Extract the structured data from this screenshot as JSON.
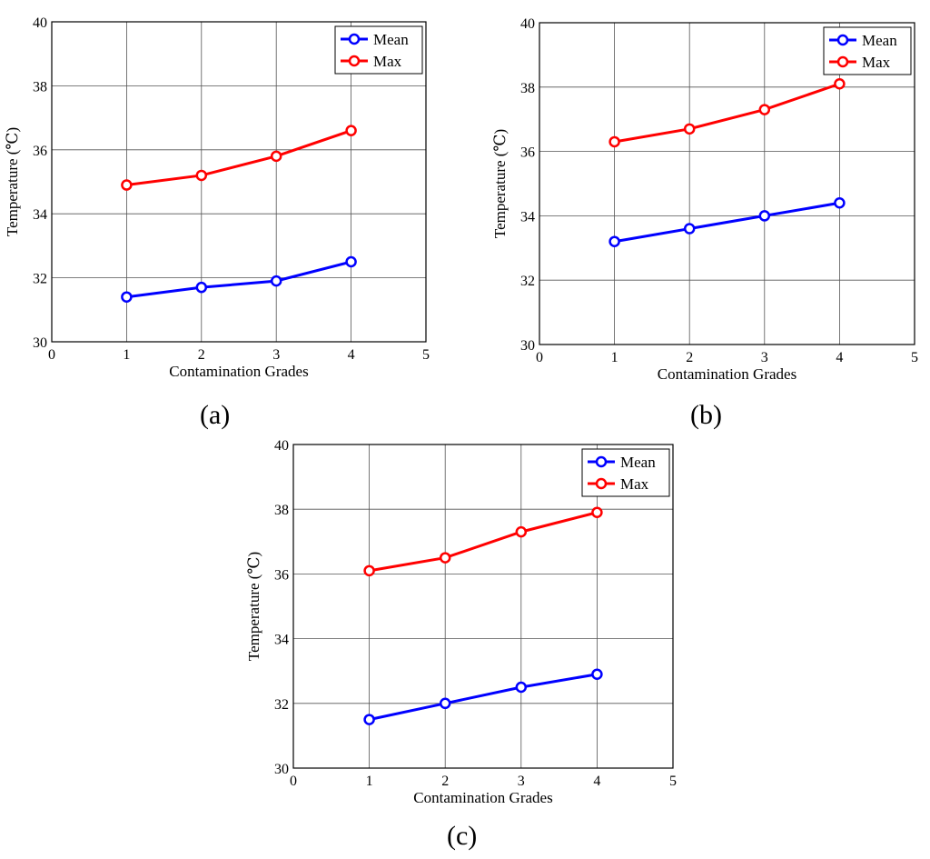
{
  "figure_captions": [
    "(a)",
    "(b)",
    "(c)"
  ],
  "legend_labels": [
    "Mean",
    "Max"
  ],
  "colors": {
    "mean": "#0000ff",
    "max": "#ff0000",
    "grid": "#000000"
  },
  "chart_data": [
    {
      "id": "a",
      "type": "line",
      "caption": "(a)",
      "xlabel": "Contamination Grades",
      "ylabel": "Temperature (℃)",
      "xlim": [
        0,
        5
      ],
      "ylim": [
        30,
        40
      ],
      "xticks": [
        0,
        1,
        2,
        3,
        4,
        5
      ],
      "yticks": [
        30,
        32,
        34,
        36,
        38,
        40
      ],
      "grid": true,
      "legend_position": "top-right",
      "x": [
        1,
        2,
        3,
        4
      ],
      "series": [
        {
          "name": "Mean",
          "color": "#0000ff",
          "values": [
            31.4,
            31.7,
            31.9,
            32.5
          ]
        },
        {
          "name": "Max",
          "color": "#ff0000",
          "values": [
            34.9,
            35.2,
            35.8,
            36.6
          ]
        }
      ]
    },
    {
      "id": "b",
      "type": "line",
      "caption": "(b)",
      "xlabel": "Contamination Grades",
      "ylabel": "Temperature (℃)",
      "xlim": [
        0,
        5
      ],
      "ylim": [
        30,
        40
      ],
      "xticks": [
        0,
        1,
        2,
        3,
        4,
        5
      ],
      "yticks": [
        30,
        32,
        34,
        36,
        38,
        40
      ],
      "grid": true,
      "legend_position": "top-right",
      "x": [
        1,
        2,
        3,
        4
      ],
      "series": [
        {
          "name": "Mean",
          "color": "#0000ff",
          "values": [
            33.2,
            33.6,
            34.0,
            34.4
          ]
        },
        {
          "name": "Max",
          "color": "#ff0000",
          "values": [
            36.3,
            36.7,
            37.3,
            38.1
          ]
        }
      ]
    },
    {
      "id": "c",
      "type": "line",
      "caption": "(c)",
      "xlabel": "Contamination Grades",
      "ylabel": "Temperature (℃)",
      "xlim": [
        0,
        5
      ],
      "ylim": [
        30,
        40
      ],
      "xticks": [
        0,
        1,
        2,
        3,
        4,
        5
      ],
      "yticks": [
        30,
        32,
        34,
        36,
        38,
        40
      ],
      "grid": true,
      "legend_position": "top-right",
      "x": [
        1,
        2,
        3,
        4
      ],
      "series": [
        {
          "name": "Mean",
          "color": "#0000ff",
          "values": [
            31.5,
            32.0,
            32.5,
            32.9
          ]
        },
        {
          "name": "Max",
          "color": "#ff0000",
          "values": [
            36.1,
            36.5,
            37.3,
            37.9
          ]
        }
      ]
    }
  ]
}
